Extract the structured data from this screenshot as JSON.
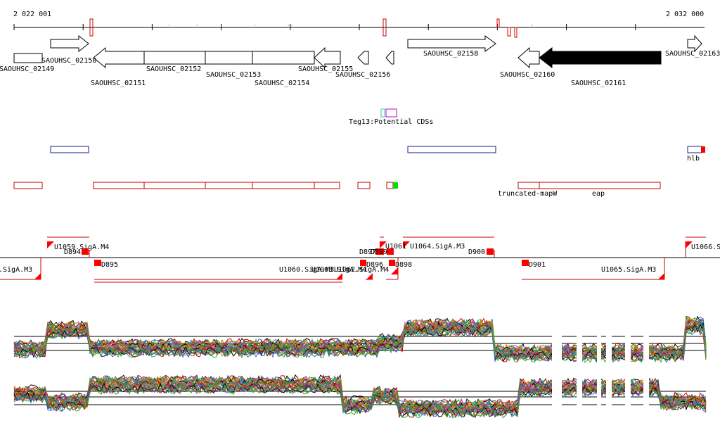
{
  "ruler": {
    "start_label": "2 022 001",
    "end_label": "2 032 000"
  },
  "genes": {
    "top": [
      "SAOUHSC_02149",
      "SAOUHSC_02150",
      "SAOUHSC_02152",
      "SAOUHSC_02155",
      "SAOUHSC_02156",
      "SAOUHSC_02158",
      "SAOUHSC_02160",
      "SAOUHSC_02163"
    ],
    "bottom": [
      "SAOUHSC_02151",
      "SAOUHSC_02153",
      "SAOUHSC_02154",
      "SAOUHSC_02161"
    ]
  },
  "potential_cds_label": "Teg13:Potential CDSs",
  "features": {
    "hlb": "hlb",
    "truncated_mapw": "truncated-mapW",
    "eap": "eap"
  },
  "tiling_labels": [
    "U1059.SigA.M4",
    "D894",
    "D895",
    "U1060.SigA.M3",
    "D896",
    "D897",
    "D898",
    "U1061",
    "U1064.SigA.M3",
    "D900",
    "D901",
    "U1065.SigA.M3",
    "U1066.S",
    ".SigA.M3",
    "U1063.SigA.M4",
    "U1062.SigA.M4",
    "D899"
  ],
  "colors": {
    "gene_outline": "#000000",
    "gene_filled": "#000000",
    "feature_outline": "#cc0000",
    "feature_blue": "#1c1c8c",
    "tss_red": "#ff0000",
    "cyan_box": "#22cccc",
    "magenta_box": "#cc00cc",
    "green_block": "#00dd00"
  }
}
